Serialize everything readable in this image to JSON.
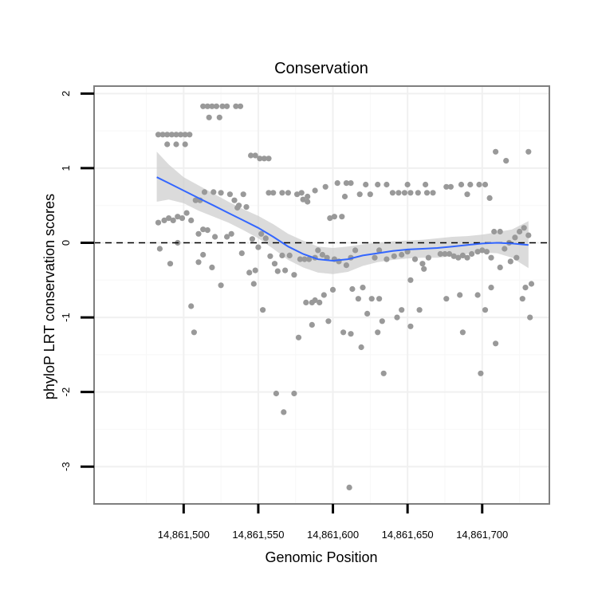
{
  "chart_data": {
    "type": "scatter",
    "title": "Conservation",
    "xlabel": "Genomic Position",
    "ylabel": "phyloP LRT conservation scores",
    "xlim": [
      14861440,
      14861745
    ],
    "ylim": [
      -3.5,
      2.1
    ],
    "x_ticks": [
      14861500,
      14861550,
      14861600,
      14861650,
      14861700
    ],
    "x_tick_labels": [
      "14,861,500",
      "14,861,550",
      "14,861,600",
      "14,861,650",
      "14,861,700"
    ],
    "y_ticks": [
      -3,
      -2,
      -1,
      0,
      1,
      2
    ],
    "y_tick_labels": [
      "-3",
      "-2",
      "-1",
      "0",
      "1",
      "2"
    ],
    "reference_line": {
      "y": 0,
      "style": "dashed"
    },
    "grid": true,
    "colors": {
      "points": "#999999",
      "smooth_line": "#3366ff",
      "ribbon": "#cccccc",
      "panel_border": "#7f7f7f"
    },
    "points": [
      [
        14861483,
        1.45
      ],
      [
        14861486,
        1.45
      ],
      [
        14861489,
        1.45
      ],
      [
        14861492,
        1.45
      ],
      [
        14861495,
        1.45
      ],
      [
        14861498,
        1.45
      ],
      [
        14861501,
        1.45
      ],
      [
        14861504,
        1.45
      ],
      [
        14861489,
        1.32
      ],
      [
        14861495,
        1.32
      ],
      [
        14861501,
        1.32
      ],
      [
        14861513,
        1.83
      ],
      [
        14861516,
        1.83
      ],
      [
        14861519,
        1.83
      ],
      [
        14861522,
        1.83
      ],
      [
        14861526,
        1.83
      ],
      [
        14861529,
        1.83
      ],
      [
        14861535,
        1.83
      ],
      [
        14861538,
        1.83
      ],
      [
        14861517,
        1.68
      ],
      [
        14861524,
        1.68
      ],
      [
        14861545,
        1.17
      ],
      [
        14861548,
        1.17
      ],
      [
        14861551,
        1.13
      ],
      [
        14861554,
        1.13
      ],
      [
        14861557,
        1.13
      ],
      [
        14861483,
        0.27
      ],
      [
        14861487,
        0.3
      ],
      [
        14861490,
        0.33
      ],
      [
        14861493,
        0.3
      ],
      [
        14861496,
        0.35
      ],
      [
        14861499,
        0.33
      ],
      [
        14861502,
        0.4
      ],
      [
        14861505,
        0.3
      ],
      [
        14861484,
        -0.08
      ],
      [
        14861491,
        -0.28
      ],
      [
        14861496,
        0.0
      ],
      [
        14861505,
        -0.85
      ],
      [
        14861507,
        -1.2
      ],
      [
        14861508,
        0.57
      ],
      [
        14861511,
        0.57
      ],
      [
        14861514,
        0.68
      ],
      [
        14861520,
        0.68
      ],
      [
        14861525,
        0.67
      ],
      [
        14861510,
        0.12
      ],
      [
        14861513,
        0.18
      ],
      [
        14861516,
        0.17
      ],
      [
        14861521,
        0.08
      ],
      [
        14861529,
        0.08
      ],
      [
        14861532,
        0.12
      ],
      [
        14861510,
        -0.26
      ],
      [
        14861513,
        -0.16
      ],
      [
        14861519,
        -0.33
      ],
      [
        14861525,
        -0.57
      ],
      [
        14861531,
        0.65
      ],
      [
        14861534,
        0.57
      ],
      [
        14861537,
        0.5
      ],
      [
        14861540,
        0.65
      ],
      [
        14861536,
        0.47
      ],
      [
        14861542,
        0.48
      ],
      [
        14861539,
        -0.14
      ],
      [
        14861544,
        -0.4
      ],
      [
        14861548,
        -0.37
      ],
      [
        14861550,
        -0.06
      ],
      [
        14861546,
        0.05
      ],
      [
        14861552,
        0.12
      ],
      [
        14861555,
        0.06
      ],
      [
        14861553,
        -0.9
      ],
      [
        14861547,
        -0.55
      ],
      [
        14861557,
        0.67
      ],
      [
        14861560,
        0.67
      ],
      [
        14861566,
        0.67
      ],
      [
        14861570,
        0.67
      ],
      [
        14861576,
        0.65
      ],
      [
        14861579,
        0.67
      ],
      [
        14861558,
        -0.18
      ],
      [
        14861561,
        -0.28
      ],
      [
        14861563,
        -0.38
      ],
      [
        14861566,
        -0.17
      ],
      [
        14861568,
        -0.37
      ],
      [
        14861571,
        -0.17
      ],
      [
        14861574,
        -0.43
      ],
      [
        14861562,
        -2.02
      ],
      [
        14861567,
        -2.27
      ],
      [
        14861574,
        -2.02
      ],
      [
        14861577,
        -1.27
      ],
      [
        14861580,
        0.58
      ],
      [
        14861583,
        0.62
      ],
      [
        14861588,
        0.7
      ],
      [
        14861595,
        0.75
      ],
      [
        14861583,
        0.55
      ],
      [
        14861578,
        -0.22
      ],
      [
        14861581,
        -0.22
      ],
      [
        14861584,
        -0.22
      ],
      [
        14861588,
        -0.2
      ],
      [
        14861590,
        -0.1
      ],
      [
        14861593,
        -0.16
      ],
      [
        14861596,
        -0.2
      ],
      [
        14861582,
        -0.8
      ],
      [
        14861586,
        -0.8
      ],
      [
        14861588,
        -0.77
      ],
      [
        14861586,
        -1.1
      ],
      [
        14861591,
        -0.8
      ],
      [
        14861594,
        -0.7
      ],
      [
        14861598,
        0.33
      ],
      [
        14861601,
        0.35
      ],
      [
        14861606,
        0.35
      ],
      [
        14861609,
        0.8
      ],
      [
        14861612,
        0.8
      ],
      [
        14861603,
        0.8
      ],
      [
        14861608,
        0.62
      ],
      [
        14861601,
        -0.22
      ],
      [
        14861604,
        -0.25
      ],
      [
        14861609,
        -0.3
      ],
      [
        14861612,
        -0.2
      ],
      [
        14861615,
        -0.1
      ],
      [
        14861597,
        -1.05
      ],
      [
        14861600,
        -0.63
      ],
      [
        14861607,
        -1.2
      ],
      [
        14861612,
        -1.22
      ],
      [
        14861617,
        -0.75
      ],
      [
        14861613,
        -0.62
      ],
      [
        14861611,
        -3.28
      ],
      [
        14861619,
        -1.4
      ],
      [
        14861618,
        0.65
      ],
      [
        14861622,
        0.78
      ],
      [
        14861625,
        0.65
      ],
      [
        14861620,
        -0.6
      ],
      [
        14861623,
        -0.95
      ],
      [
        14861626,
        -0.75
      ],
      [
        14861628,
        -0.2
      ],
      [
        14861631,
        -0.1
      ],
      [
        14861633,
        -1.05
      ],
      [
        14861631,
        -0.75
      ],
      [
        14861634,
        -1.75
      ],
      [
        14861630,
        -1.2
      ],
      [
        14861630,
        0.78
      ],
      [
        14861636,
        0.78
      ],
      [
        14861640,
        0.67
      ],
      [
        14861644,
        0.67
      ],
      [
        14861648,
        0.67
      ],
      [
        14861652,
        0.67
      ],
      [
        14861657,
        0.67
      ],
      [
        14861663,
        0.67
      ],
      [
        14861667,
        0.67
      ],
      [
        14861662,
        0.78
      ],
      [
        14861650,
        0.78
      ],
      [
        14861636,
        -0.22
      ],
      [
        14861641,
        -0.18
      ],
      [
        14861646,
        -0.16
      ],
      [
        14861650,
        -0.12
      ],
      [
        14861655,
        -0.22
      ],
      [
        14861660,
        -0.28
      ],
      [
        14861664,
        -0.2
      ],
      [
        14861643,
        -1.0
      ],
      [
        14861646,
        -0.9
      ],
      [
        14861652,
        -1.12
      ],
      [
        14861652,
        -0.5
      ],
      [
        14861658,
        -0.9
      ],
      [
        14861661,
        -0.35
      ],
      [
        14861672,
        -0.15
      ],
      [
        14861675,
        -0.15
      ],
      [
        14861678,
        -0.15
      ],
      [
        14861681,
        -0.18
      ],
      [
        14861684,
        -0.2
      ],
      [
        14861687,
        -0.17
      ],
      [
        14861690,
        -0.2
      ],
      [
        14861693,
        -0.15
      ],
      [
        14861697,
        -0.12
      ],
      [
        14861700,
        -0.1
      ],
      [
        14861703,
        -0.12
      ],
      [
        14861706,
        -0.2
      ],
      [
        14861676,
        0.75
      ],
      [
        14861679,
        0.75
      ],
      [
        14861686,
        0.78
      ],
      [
        14861692,
        0.78
      ],
      [
        14861698,
        0.78
      ],
      [
        14861702,
        0.78
      ],
      [
        14861690,
        0.65
      ],
      [
        14861705,
        0.6
      ],
      [
        14861676,
        -0.75
      ],
      [
        14861685,
        -0.7
      ],
      [
        14861687,
        -1.2
      ],
      [
        14861697,
        -0.7
      ],
      [
        14861699,
        -1.75
      ],
      [
        14861702,
        -0.9
      ],
      [
        14861706,
        -0.6
      ],
      [
        14861709,
        -1.35
      ],
      [
        14861709,
        1.22
      ],
      [
        14861716,
        1.1
      ],
      [
        14861731,
        1.22
      ],
      [
        14861708,
        0.15
      ],
      [
        14861712,
        0.15
      ],
      [
        14861715,
        -0.08
      ],
      [
        14861718,
        0.0
      ],
      [
        14861722,
        0.07
      ],
      [
        14861725,
        0.15
      ],
      [
        14861728,
        0.2
      ],
      [
        14861731,
        0.1
      ],
      [
        14861712,
        -0.33
      ],
      [
        14861719,
        -0.25
      ],
      [
        14861723,
        -0.2
      ],
      [
        14861727,
        -0.75
      ],
      [
        14861729,
        -0.6
      ],
      [
        14861733,
        -0.55
      ],
      [
        14861732,
        -1.0
      ]
    ],
    "smooth_fit": {
      "method": "loess",
      "x": [
        14861482,
        14861490,
        14861500,
        14861510,
        14861520,
        14861530,
        14861540,
        14861550,
        14861560,
        14861570,
        14861580,
        14861590,
        14861600,
        14861610,
        14861620,
        14861630,
        14861640,
        14861650,
        14861660,
        14861670,
        14861680,
        14861690,
        14861700,
        14861710,
        14861720,
        14861731
      ],
      "y": [
        0.88,
        0.8,
        0.7,
        0.6,
        0.5,
        0.4,
        0.3,
        0.2,
        0.08,
        -0.05,
        -0.15,
        -0.22,
        -0.24,
        -0.22,
        -0.17,
        -0.14,
        -0.11,
        -0.09,
        -0.08,
        -0.07,
        -0.05,
        -0.03,
        -0.01,
        0.0,
        -0.01,
        -0.03
      ],
      "lower": [
        0.55,
        0.58,
        0.53,
        0.43,
        0.35,
        0.27,
        0.17,
        0.06,
        -0.08,
        -0.23,
        -0.33,
        -0.4,
        -0.42,
        -0.39,
        -0.31,
        -0.26,
        -0.23,
        -0.21,
        -0.2,
        -0.2,
        -0.18,
        -0.15,
        -0.13,
        -0.14,
        -0.2,
        -0.34
      ],
      "upper": [
        1.22,
        1.05,
        0.88,
        0.77,
        0.66,
        0.55,
        0.45,
        0.36,
        0.25,
        0.12,
        0.03,
        -0.05,
        -0.07,
        -0.05,
        -0.02,
        0.0,
        0.02,
        0.03,
        0.04,
        0.06,
        0.08,
        0.09,
        0.11,
        0.14,
        0.18,
        0.29
      ]
    }
  }
}
